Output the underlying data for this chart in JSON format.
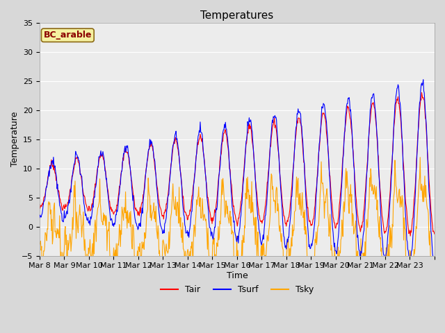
{
  "title": "Temperatures",
  "xlabel": "Time",
  "ylabel": "Temperature",
  "legend_label": "BC_arable",
  "series_labels": [
    "Tair",
    "Tsurf",
    "Tsky"
  ],
  "series_colors": [
    "red",
    "blue",
    "orange"
  ],
  "ylim": [
    -5,
    35
  ],
  "yticks": [
    -5,
    0,
    5,
    10,
    15,
    20,
    25,
    30,
    35
  ],
  "x_tick_labels": [
    "Mar 8",
    "Mar 9",
    "Mar 10",
    "Mar 11",
    "Mar 12",
    "Mar 13",
    "Mar 14",
    "Mar 15",
    "Mar 16",
    "Mar 17",
    "Mar 18",
    "Mar 19",
    "Mar 20",
    "Mar 21",
    "Mar 22",
    "Mar 23"
  ],
  "n_days": 16,
  "pts_per_day": 48,
  "background_color": "#d8d8d8",
  "plot_bg_color": "#ececec",
  "grid_color": "#ffffff",
  "title_fontsize": 11,
  "axis_fontsize": 9,
  "tick_fontsize": 8,
  "legend_fontsize": 9,
  "line_width": 0.8,
  "annotation_color": "#8b0000",
  "annotation_bg": "#f5f0a0",
  "annotation_edge": "#8b6914"
}
